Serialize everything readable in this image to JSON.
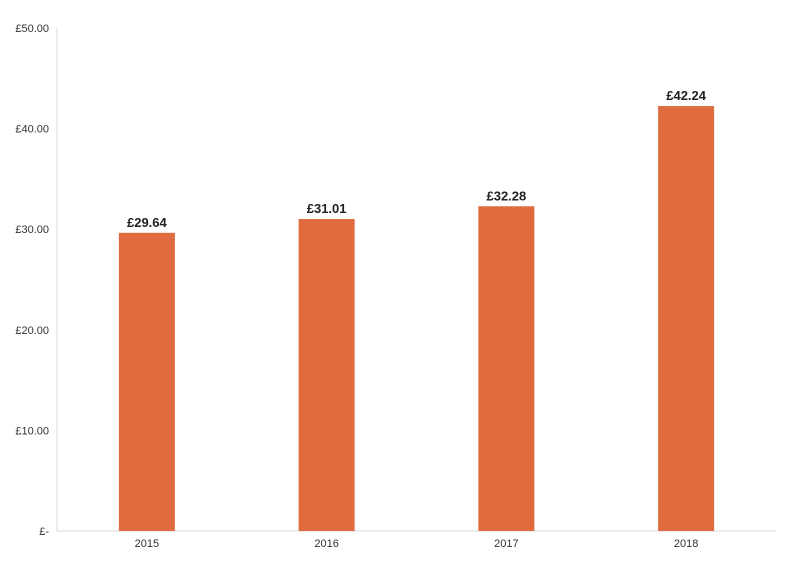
{
  "chart_data": {
    "type": "bar",
    "categories": [
      "2015",
      "2016",
      "2017",
      "2018"
    ],
    "values": [
      29.64,
      31.01,
      32.28,
      42.24
    ],
    "data_labels": [
      "£29.64",
      "£31.01",
      "£32.28",
      "£42.24"
    ],
    "ylim": [
      0,
      50
    ],
    "yticks": [
      0,
      10,
      20,
      30,
      40,
      50
    ],
    "ytick_labels": [
      "£-",
      "£10.00",
      "£20.00",
      "£30.00",
      "£40.00",
      "£50.00"
    ],
    "title": "",
    "xlabel": "",
    "ylabel": "",
    "grid": false,
    "legend": "none",
    "bar_color": "#E06B3E",
    "axis_color": "#D9D9D9"
  }
}
